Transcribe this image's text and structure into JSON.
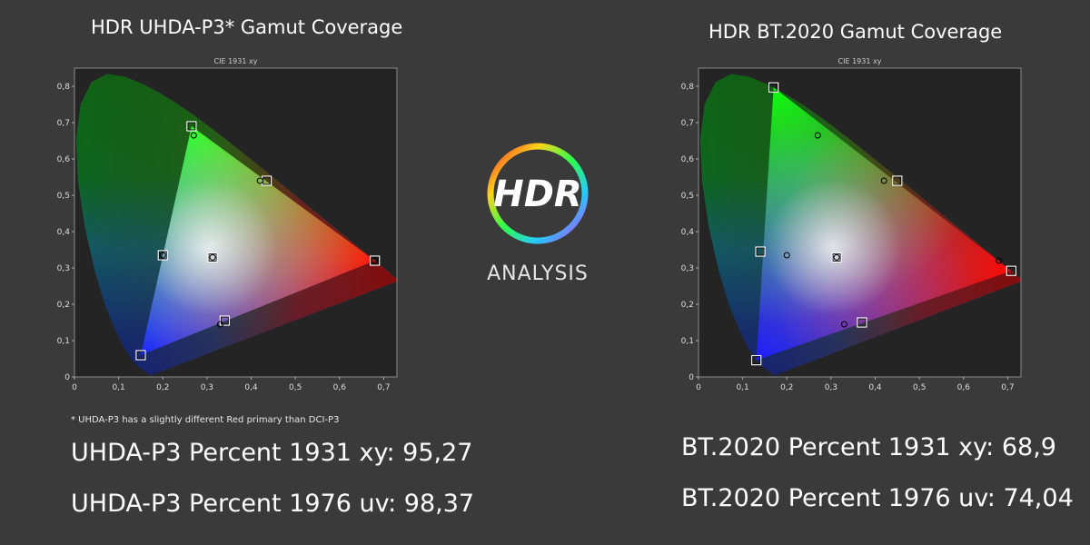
{
  "charts": {
    "left": {
      "title": "HDR UHDA-P3* Gamut Coverage",
      "footnote": "* UHDA-P3 has a slightly different Red primary than DCI-P3",
      "stat_xy": "UHDA-P3 Percent 1931 xy: 95,27",
      "stat_uv": "UHDA-P3 Percent 1976 uv: 98,37"
    },
    "right": {
      "title": "HDR BT.2020  Gamut Coverage",
      "stat_xy": "BT.2020 Percent 1931 xy: 68,9",
      "stat_uv": "BT.2020 Percent 1976 uv: 74,04"
    }
  },
  "logo": {
    "text": "HDR",
    "subtitle": "ANALYSIS"
  },
  "chart_data": [
    {
      "type": "scatter",
      "title": "CIE 1931 xy",
      "xlim": [
        0,
        0.73
      ],
      "ylim": [
        0,
        0.85
      ],
      "x_ticks": [
        "0",
        "0,1",
        "0,2",
        "0,3",
        "0,4",
        "0,5",
        "0,6",
        "0,7"
      ],
      "y_ticks": [
        "0",
        "0,1",
        "0,2",
        "0,3",
        "0,4",
        "0,5",
        "0,6",
        "0,7",
        "0,8"
      ],
      "target_gamut": [
        [
          0.68,
          0.32
        ],
        [
          0.265,
          0.69
        ],
        [
          0.15,
          0.06
        ]
      ],
      "series": [
        {
          "marker": "square",
          "points": [
            [
              0.68,
              0.32
            ],
            [
              0.265,
              0.69
            ],
            [
              0.15,
              0.06
            ],
            [
              0.3127,
              0.329
            ],
            [
              0.2,
              0.335
            ],
            [
              0.435,
              0.54
            ],
            [
              0.34,
              0.155
            ]
          ]
        },
        {
          "marker": "circle",
          "points": [
            [
              0.68,
              0.32
            ],
            [
              0.27,
              0.665
            ],
            [
              0.3127,
              0.329
            ],
            [
              0.2,
              0.335
            ],
            [
              0.42,
              0.54
            ],
            [
              0.33,
              0.145
            ]
          ]
        }
      ]
    },
    {
      "type": "scatter",
      "title": "CIE 1931 xy",
      "xlim": [
        0,
        0.73
      ],
      "ylim": [
        0,
        0.85
      ],
      "x_ticks": [
        "0",
        "0,1",
        "0,2",
        "0,3",
        "0,4",
        "0,5",
        "0,6",
        "0,7"
      ],
      "y_ticks": [
        "0",
        "0,1",
        "0,2",
        "0,3",
        "0,4",
        "0,5",
        "0,6",
        "0,7",
        "0,8"
      ],
      "target_gamut": [
        [
          0.708,
          0.292
        ],
        [
          0.17,
          0.797
        ],
        [
          0.131,
          0.046
        ]
      ],
      "series": [
        {
          "marker": "square",
          "points": [
            [
              0.708,
              0.292
            ],
            [
              0.17,
              0.797
            ],
            [
              0.131,
              0.046
            ],
            [
              0.3127,
              0.329
            ],
            [
              0.14,
              0.345
            ],
            [
              0.45,
              0.54
            ],
            [
              0.37,
              0.15
            ]
          ]
        },
        {
          "marker": "circle",
          "points": [
            [
              0.68,
              0.32
            ],
            [
              0.27,
              0.665
            ],
            [
              0.3127,
              0.329
            ],
            [
              0.2,
              0.335
            ],
            [
              0.42,
              0.54
            ],
            [
              0.33,
              0.145
            ]
          ]
        }
      ]
    }
  ]
}
